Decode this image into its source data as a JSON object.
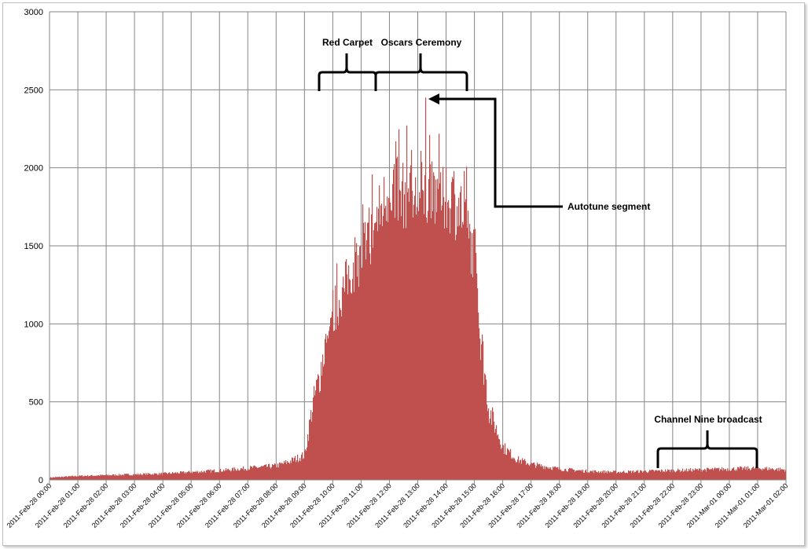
{
  "chart_data": {
    "type": "bar",
    "title": "",
    "xlabel": "",
    "ylabel": "",
    "ylim": [
      0,
      3000
    ],
    "yticks": [
      0,
      500,
      1000,
      1500,
      2000,
      2500,
      3000
    ],
    "grid": true,
    "legend": "none",
    "bar_color": "#c0504d",
    "x_start": "2011-02-28 00:00",
    "x_end": "2011-03-01 02:00",
    "xtick_labels": [
      "2011-Feb-28 00:00",
      "2011-Feb-28 01:00",
      "2011-Feb-28 02:00",
      "2011-Feb-28 03:00",
      "2011-Feb-28 04:00",
      "2011-Feb-28 05:00",
      "2011-Feb-28 06:00",
      "2011-Feb-28 07:00",
      "2011-Feb-28 08:00",
      "2011-Feb-28 09:00",
      "2011-Feb-28 10:00",
      "2011-Feb-28 11:00",
      "2011-Feb-28 12:00",
      "2011-Feb-28 13:00",
      "2011-Feb-28 14:00",
      "2011-Feb-28 15:00",
      "2011-Feb-28 16:00",
      "2011-Feb-28 17:00",
      "2011-Feb-28 18:00",
      "2011-Feb-28 19:00",
      "2011-Feb-28 20:00",
      "2011-Feb-28 21:00",
      "2011-Feb-28 22:00",
      "2011-Feb-28 23:00",
      "2011-Mar-01 00:00",
      "2011-Mar-01 01:00",
      "2011-Mar-01 02:00"
    ],
    "series": [
      {
        "x": [
          "2011-02-28 00:00",
          "2011-02-28 01:00",
          "2011-02-28 02:00",
          "2011-02-28 03:00",
          "2011-02-28 04:00",
          "2011-02-28 05:00",
          "2011-02-28 06:00",
          "2011-02-28 07:00",
          "2011-02-28 08:00",
          "2011-02-28 08:30",
          "2011-02-28 09:00",
          "2011-02-28 09:15",
          "2011-02-28 09:30",
          "2011-02-28 10:00",
          "2011-02-28 10:30",
          "2011-02-28 11:00",
          "2011-02-28 11:30",
          "2011-02-28 12:00",
          "2011-02-28 12:30",
          "2011-02-28 13:00",
          "2011-02-28 13:30",
          "2011-02-28 14:00",
          "2011-02-28 14:30",
          "2011-02-28 15:00",
          "2011-02-28 15:15",
          "2011-02-28 15:30",
          "2011-02-28 16:00",
          "2011-02-28 16:30",
          "2011-02-28 17:00",
          "2011-02-28 18:00",
          "2011-02-28 19:00",
          "2011-02-28 20:00",
          "2011-02-28 21:00",
          "2011-02-28 22:00",
          "2011-02-28 23:00",
          "2011-03-01 00:00",
          "2011-03-01 01:00",
          "2011-03-01 02:00"
        ],
        "values": [
          15,
          25,
          30,
          35,
          40,
          50,
          60,
          75,
          90,
          120,
          160,
          450,
          650,
          1150,
          1450,
          1600,
          1850,
          2100,
          2050,
          2000,
          2050,
          2000,
          1950,
          1600,
          850,
          450,
          210,
          130,
          100,
          70,
          55,
          50,
          55,
          60,
          65,
          70,
          75,
          65
        ],
        "peak": {
          "x": "2011-02-28 13:15",
          "value": 2450
        }
      }
    ],
    "annotations": [
      {
        "text": "Red Carpet",
        "from": "2011-02-28 09:45",
        "to": "2011-02-28 11:45"
      },
      {
        "text": "Oscars Ceremony",
        "from": "2011-02-28 11:45",
        "to": "2011-02-28 14:45"
      },
      {
        "text": "Autotune segment",
        "at": "2011-02-28 13:15"
      },
      {
        "text": "Channel Nine broadcast",
        "from": "2011-02-28 21:40",
        "to": "2011-03-01 01:00"
      }
    ]
  }
}
